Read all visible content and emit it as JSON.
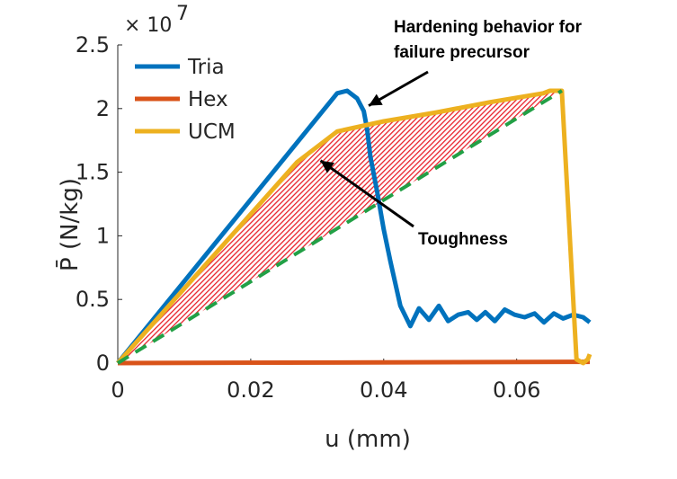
{
  "chart_data": {
    "type": "line",
    "xlabel": "u (mm)",
    "ylabel": "P̄ (N/kg)",
    "y_multiplier": "× 10",
    "y_multiplier_exp": "7",
    "xlim": [
      0,
      0.071
    ],
    "ylim": [
      0,
      2.5
    ],
    "xticks": [
      "0",
      "0.02",
      "0.04",
      "0.06"
    ],
    "yticks": [
      "0",
      "0.5",
      "1",
      "1.5",
      "2",
      "2.5"
    ],
    "legend_position": "top-left",
    "series": [
      {
        "name": "Tria",
        "color": "#0072BD",
        "x": [
          0,
          0.033,
          0.0345,
          0.036,
          0.037,
          0.0375,
          0.038,
          0.039,
          0.04,
          0.041,
          0.0425,
          0.044,
          0.0453,
          0.0468,
          0.0483,
          0.0497,
          0.0512,
          0.0527,
          0.054,
          0.0553,
          0.0567,
          0.0582,
          0.0597,
          0.0612,
          0.0627,
          0.0641,
          0.0656,
          0.067,
          0.0685,
          0.07,
          0.071
        ],
        "y": [
          0,
          2.12,
          2.14,
          2.08,
          1.98,
          1.84,
          1.62,
          1.35,
          1.05,
          0.8,
          0.45,
          0.29,
          0.43,
          0.34,
          0.45,
          0.33,
          0.38,
          0.4,
          0.34,
          0.4,
          0.33,
          0.42,
          0.38,
          0.36,
          0.39,
          0.32,
          0.39,
          0.35,
          0.38,
          0.36,
          0.32
        ]
      },
      {
        "name": "Hex",
        "color": "#D95319",
        "x": [
          0,
          0.071
        ],
        "y": [
          0,
          0.01
        ]
      },
      {
        "name": "UCM",
        "color": "#EDB120",
        "x": [
          0,
          0.027,
          0.033,
          0.04,
          0.048,
          0.056,
          0.064,
          0.065,
          0.0668,
          0.069,
          0.07,
          0.0707,
          0.071
        ],
        "y": [
          0,
          1.58,
          1.82,
          1.9,
          1.97,
          2.05,
          2.12,
          2.14,
          2.14,
          0.03,
          0.0,
          0.03,
          0.07
        ]
      }
    ],
    "reference_line": {
      "color": "#22A046",
      "style": "dashed",
      "x": [
        0,
        0.0668
      ],
      "y": [
        0,
        2.14
      ]
    },
    "fill_region": {
      "color": "#E8202A",
      "pattern": "hatched",
      "label": "Toughness"
    },
    "annotations": [
      {
        "text_lines": [
          "Hardening behavior for",
          "failure precursor"
        ],
        "arrow_to": [
          0.0372,
          1.98
        ]
      },
      {
        "text_lines": [
          "Toughness"
        ],
        "arrow_to": [
          0.0305,
          1.52
        ]
      }
    ]
  }
}
